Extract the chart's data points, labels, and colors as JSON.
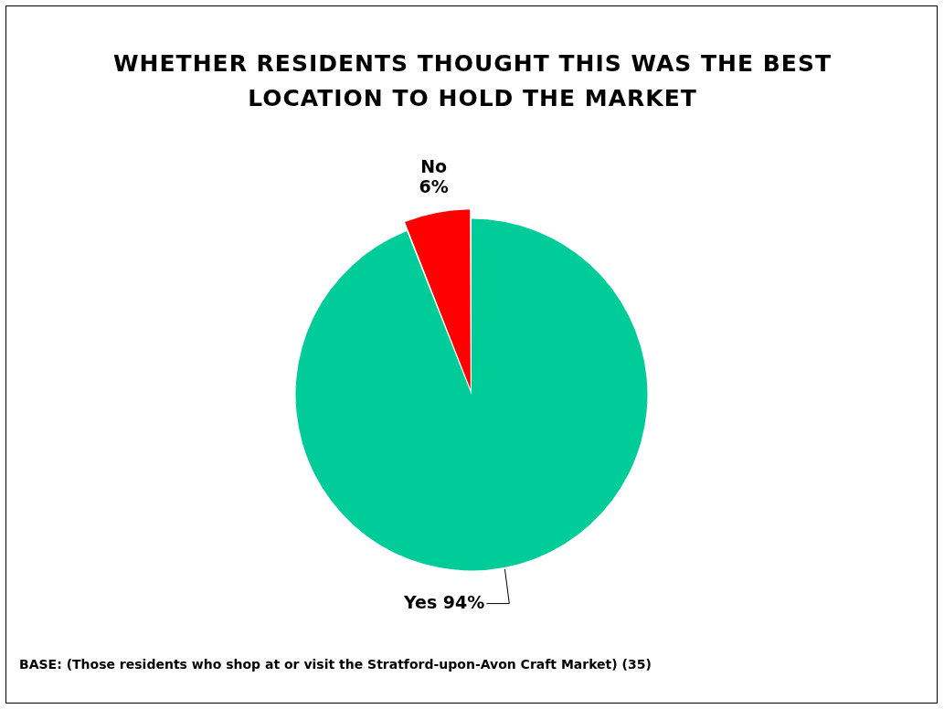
{
  "chart_data": {
    "type": "pie",
    "title": "WHETHER RESIDENTS THOUGHT THIS WAS THE BEST LOCATION TO HOLD THE MARKET",
    "categories": [
      "Yes",
      "No"
    ],
    "values": [
      94,
      6
    ],
    "colors": [
      "#00cc99",
      "#ff0000"
    ],
    "value_labels": [
      "94%",
      "6%"
    ],
    "legend": false,
    "annotations": [
      "BASE: (Those residents who shop at or visit the Stratford-upon-Avon Craft Market) (35)"
    ]
  }
}
